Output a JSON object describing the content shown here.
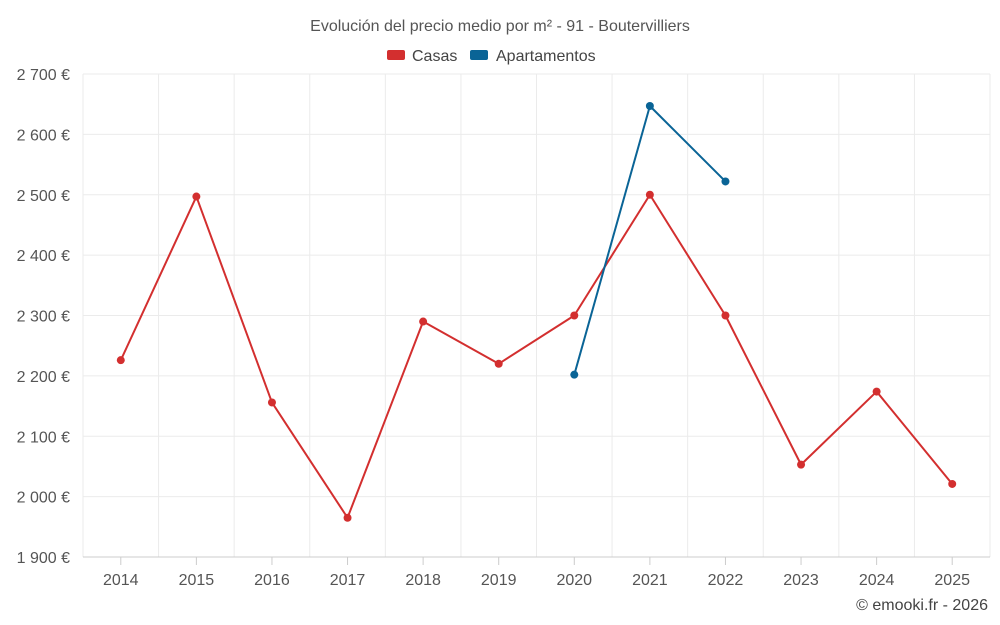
{
  "chart_data": {
    "type": "line",
    "title": "Evolución del precio medio por m² - 91 - Boutervilliers",
    "categories": [
      "2014",
      "2015",
      "2016",
      "2017",
      "2018",
      "2019",
      "2020",
      "2021",
      "2022",
      "2023",
      "2024",
      "2025"
    ],
    "y_ticks": [
      1900,
      2000,
      2100,
      2200,
      2300,
      2400,
      2500,
      2600,
      2700
    ],
    "y_tick_labels": [
      "1 900 €",
      "2 000 €",
      "2 100 €",
      "2 200 €",
      "2 300 €",
      "2 400 €",
      "2 500 €",
      "2 600 €",
      "2 700 €"
    ],
    "ylim": [
      1900,
      2700
    ],
    "grid": true,
    "legend_position": "top-center",
    "series": [
      {
        "name": "Casas",
        "color": "#d32f2f",
        "values": [
          2226,
          2497,
          2156,
          1965,
          2290,
          2220,
          2300,
          2500,
          2300,
          2053,
          2174,
          2021
        ]
      },
      {
        "name": "Apartamentos",
        "color": "#0a6496",
        "values": [
          null,
          null,
          null,
          null,
          null,
          null,
          2202,
          2647,
          2522,
          null,
          null,
          null
        ]
      }
    ],
    "credit": "© emooki.fr - 2026"
  }
}
